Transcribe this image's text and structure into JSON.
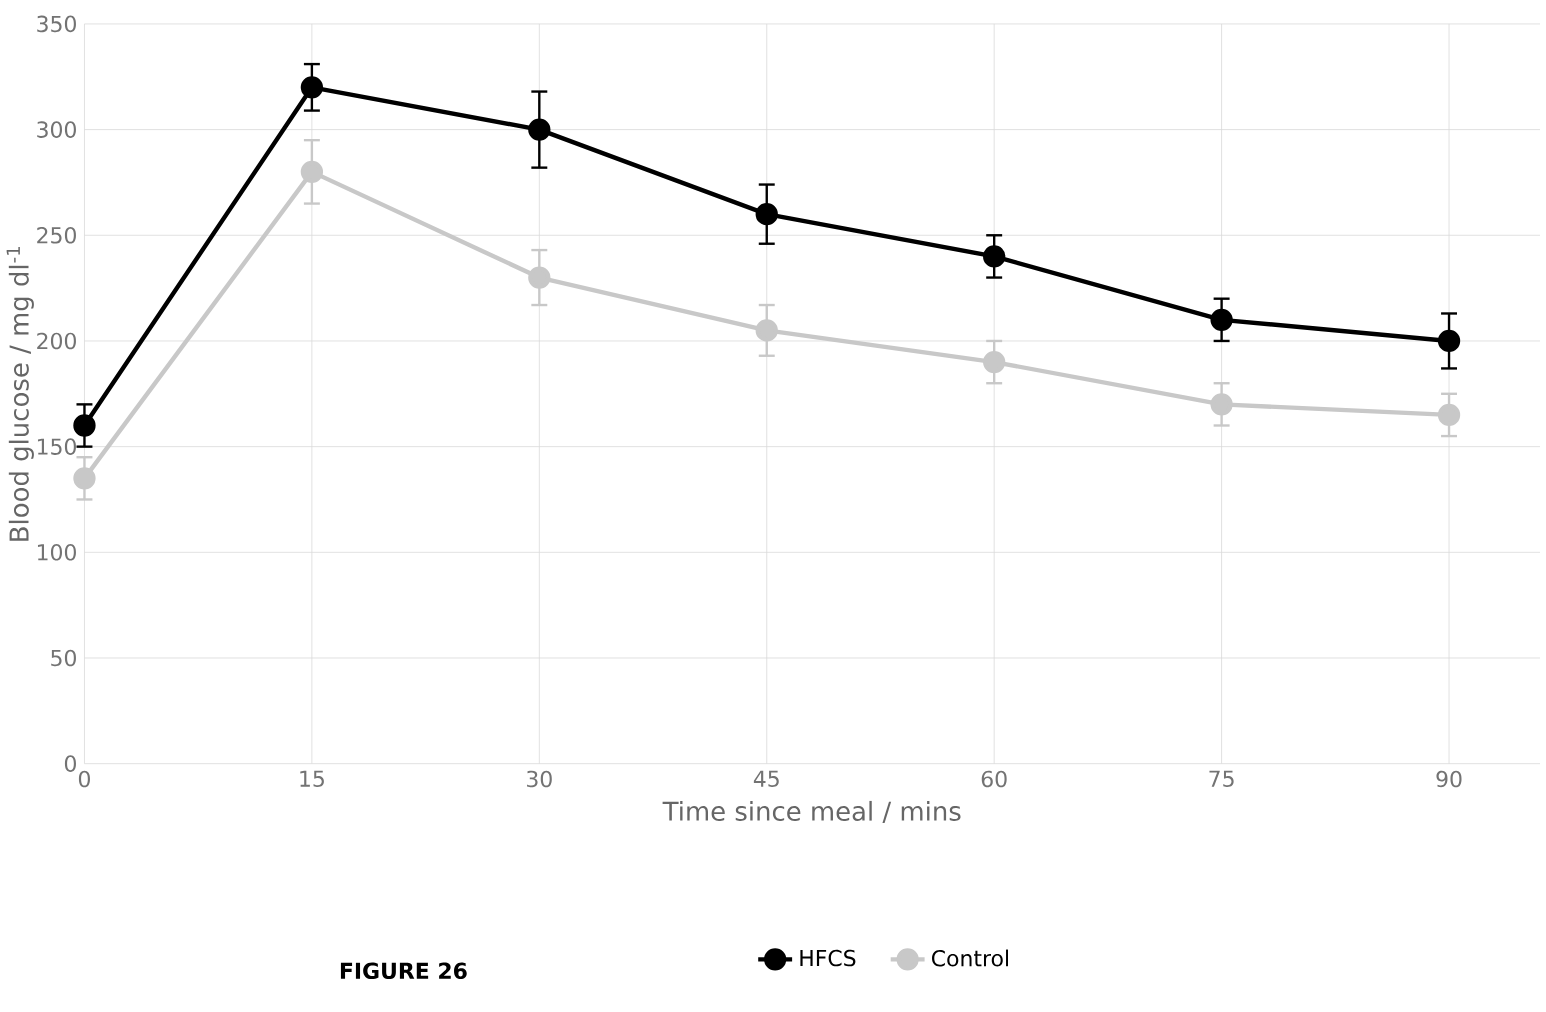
{
  "chart_data": {
    "type": "line",
    "xlabel": "Time since meal / mins",
    "ylabel": "Blood glucose / mg dl$^{-1}$",
    "x": [
      0,
      15,
      30,
      45,
      60,
      75,
      90
    ],
    "series": [
      {
        "name": "HFCS",
        "color": "#000000",
        "values": [
          160,
          320,
          300,
          260,
          240,
          210,
          200
        ],
        "errors": [
          10,
          11,
          18,
          14,
          10,
          10,
          13
        ]
      },
      {
        "name": "Control",
        "color": "#c8c8c8",
        "values": [
          135,
          280,
          230,
          205,
          190,
          170,
          165
        ],
        "errors": [
          10,
          15,
          13,
          12,
          10,
          10,
          10
        ]
      }
    ],
    "xlim": [
      0,
      96
    ],
    "xticks": [
      0,
      15,
      30,
      45,
      60,
      75,
      90
    ],
    "ylim": [
      0,
      350
    ],
    "yticks": [
      0,
      50,
      100,
      150,
      200,
      250,
      300,
      350
    ],
    "grid": true,
    "legend": "bottom",
    "marker": "circle",
    "line_style": "solid",
    "annotations": [
      "**FIGURE 26**"
    ]
  }
}
